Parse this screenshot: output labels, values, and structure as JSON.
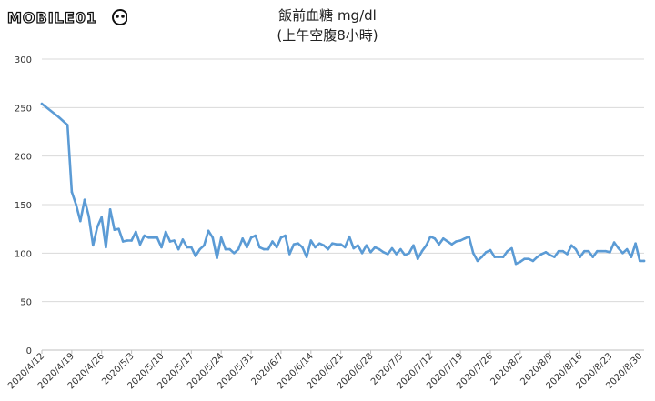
{
  "logo": {
    "text": "MOBILE01"
  },
  "chart_data": {
    "type": "line",
    "title": "飯前血糖 mg/dl",
    "subtitle": "(上午空腹8小時)",
    "xlabel": "",
    "ylabel": "",
    "ylim": [
      0,
      300
    ],
    "yticks": [
      0,
      50,
      100,
      150,
      200,
      250,
      300
    ],
    "grid": "horizontal",
    "legend": "none",
    "line_color": "#5b9bd5",
    "x_start": "2020-04-12",
    "x_end": "2020-08-31",
    "xtick_labels": [
      "2020/4/12",
      "2020/4/19",
      "2020/4/26",
      "2020/5/3",
      "2020/5/10",
      "2020/5/17",
      "2020/5/24",
      "2020/5/31",
      "2020/6/7",
      "2020/6/14",
      "2020/6/21",
      "2020/6/28",
      "2020/7/5",
      "2020/7/12",
      "2020/7/19",
      "2020/7/26",
      "2020/8/2",
      "2020/8/9",
      "2020/8/16",
      "2020/8/23",
      "2020/8/30"
    ],
    "series": [
      {
        "name": "",
        "points": [
          [
            "2020-04-12",
            254
          ],
          [
            "2020-04-16",
            240
          ],
          [
            "2020-04-18",
            232
          ],
          [
            "2020-04-19",
            163
          ],
          [
            "2020-04-20",
            150
          ],
          [
            "2020-04-21",
            133
          ],
          [
            "2020-04-22",
            155
          ],
          [
            "2020-04-23",
            138
          ],
          [
            "2020-04-24",
            108
          ],
          [
            "2020-04-25",
            127
          ],
          [
            "2020-04-26",
            137
          ],
          [
            "2020-04-27",
            106
          ],
          [
            "2020-04-28",
            145
          ],
          [
            "2020-04-29",
            124
          ],
          [
            "2020-04-30",
            125
          ],
          [
            "2020-05-01",
            112
          ],
          [
            "2020-05-02",
            113
          ],
          [
            "2020-05-03",
            113
          ],
          [
            "2020-05-04",
            122
          ],
          [
            "2020-05-05",
            109
          ],
          [
            "2020-05-06",
            118
          ],
          [
            "2020-05-07",
            116
          ],
          [
            "2020-05-08",
            116
          ],
          [
            "2020-05-09",
            116
          ],
          [
            "2020-05-10",
            106
          ],
          [
            "2020-05-11",
            122
          ],
          [
            "2020-05-12",
            112
          ],
          [
            "2020-05-13",
            113
          ],
          [
            "2020-05-14",
            104
          ],
          [
            "2020-05-15",
            114
          ],
          [
            "2020-05-16",
            106
          ],
          [
            "2020-05-17",
            106
          ],
          [
            "2020-05-18",
            97
          ],
          [
            "2020-05-19",
            104
          ],
          [
            "2020-05-20",
            108
          ],
          [
            "2020-05-21",
            123
          ],
          [
            "2020-05-22",
            116
          ],
          [
            "2020-05-23",
            95
          ],
          [
            "2020-05-24",
            116
          ],
          [
            "2020-05-25",
            104
          ],
          [
            "2020-05-26",
            104
          ],
          [
            "2020-05-27",
            100
          ],
          [
            "2020-05-28",
            104
          ],
          [
            "2020-05-29",
            115
          ],
          [
            "2020-05-30",
            106
          ],
          [
            "2020-05-31",
            116
          ],
          [
            "2020-06-01",
            118
          ],
          [
            "2020-06-02",
            106
          ],
          [
            "2020-06-03",
            104
          ],
          [
            "2020-06-04",
            104
          ],
          [
            "2020-06-05",
            112
          ],
          [
            "2020-06-06",
            106
          ],
          [
            "2020-06-07",
            116
          ],
          [
            "2020-06-08",
            118
          ],
          [
            "2020-06-09",
            99
          ],
          [
            "2020-06-10",
            109
          ],
          [
            "2020-06-11",
            110
          ],
          [
            "2020-06-12",
            106
          ],
          [
            "2020-06-13",
            96
          ],
          [
            "2020-06-14",
            113
          ],
          [
            "2020-06-15",
            106
          ],
          [
            "2020-06-16",
            110
          ],
          [
            "2020-06-17",
            108
          ],
          [
            "2020-06-18",
            104
          ],
          [
            "2020-06-19",
            110
          ],
          [
            "2020-06-20",
            109
          ],
          [
            "2020-06-21",
            109
          ],
          [
            "2020-06-22",
            106
          ],
          [
            "2020-06-23",
            117
          ],
          [
            "2020-06-24",
            105
          ],
          [
            "2020-06-25",
            108
          ],
          [
            "2020-06-26",
            100
          ],
          [
            "2020-06-27",
            108
          ],
          [
            "2020-06-28",
            101
          ],
          [
            "2020-06-29",
            106
          ],
          [
            "2020-06-30",
            104
          ],
          [
            "2020-07-01",
            101
          ],
          [
            "2020-07-02",
            99
          ],
          [
            "2020-07-03",
            105
          ],
          [
            "2020-07-04",
            99
          ],
          [
            "2020-07-05",
            104
          ],
          [
            "2020-07-06",
            98
          ],
          [
            "2020-07-07",
            100
          ],
          [
            "2020-07-08",
            108
          ],
          [
            "2020-07-09",
            94
          ],
          [
            "2020-07-10",
            102
          ],
          [
            "2020-07-11",
            108
          ],
          [
            "2020-07-12",
            117
          ],
          [
            "2020-07-13",
            115
          ],
          [
            "2020-07-14",
            109
          ],
          [
            "2020-07-15",
            115
          ],
          [
            "2020-07-16",
            112
          ],
          [
            "2020-07-17",
            109
          ],
          [
            "2020-07-18",
            112
          ],
          [
            "2020-07-19",
            113
          ],
          [
            "2020-07-20",
            115
          ],
          [
            "2020-07-21",
            117
          ],
          [
            "2020-07-22",
            100
          ],
          [
            "2020-07-23",
            92
          ],
          [
            "2020-07-24",
            96
          ],
          [
            "2020-07-25",
            101
          ],
          [
            "2020-07-26",
            103
          ],
          [
            "2020-07-27",
            96
          ],
          [
            "2020-07-28",
            96
          ],
          [
            "2020-07-29",
            96
          ],
          [
            "2020-07-30",
            102
          ],
          [
            "2020-07-31",
            105
          ],
          [
            "2020-08-01",
            89
          ],
          [
            "2020-08-02",
            91
          ],
          [
            "2020-08-03",
            94
          ],
          [
            "2020-08-04",
            94
          ],
          [
            "2020-08-05",
            92
          ],
          [
            "2020-08-06",
            96
          ],
          [
            "2020-08-07",
            99
          ],
          [
            "2020-08-08",
            101
          ],
          [
            "2020-08-09",
            98
          ],
          [
            "2020-08-10",
            96
          ],
          [
            "2020-08-11",
            102
          ],
          [
            "2020-08-12",
            102
          ],
          [
            "2020-08-13",
            99
          ],
          [
            "2020-08-14",
            108
          ],
          [
            "2020-08-15",
            104
          ],
          [
            "2020-08-16",
            96
          ],
          [
            "2020-08-17",
            102
          ],
          [
            "2020-08-18",
            102
          ],
          [
            "2020-08-19",
            96
          ],
          [
            "2020-08-20",
            102
          ],
          [
            "2020-08-21",
            102
          ],
          [
            "2020-08-22",
            102
          ],
          [
            "2020-08-23",
            101
          ],
          [
            "2020-08-24",
            111
          ],
          [
            "2020-08-25",
            105
          ],
          [
            "2020-08-26",
            100
          ],
          [
            "2020-08-27",
            104
          ],
          [
            "2020-08-28",
            96
          ],
          [
            "2020-08-29",
            110
          ],
          [
            "2020-08-30",
            92
          ],
          [
            "2020-08-31",
            92
          ]
        ]
      }
    ]
  }
}
